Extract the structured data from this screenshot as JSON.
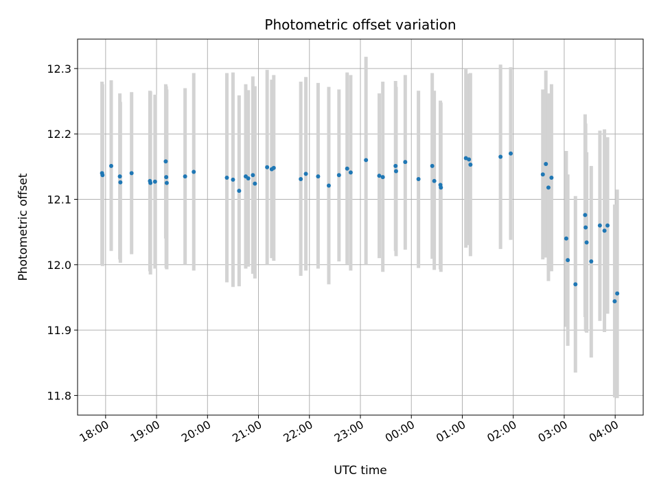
{
  "chart_data": {
    "type": "scatter",
    "title": "Photometric offset variation",
    "xlabel": "UTC time",
    "ylabel": "Photometric offset",
    "grid": true,
    "errorbar_color": "#d3d3d3",
    "point_color": "#1f77b4",
    "x_unit": "hours since 00:00 UTC (negative = previous day)",
    "xlim": [
      -6.55,
      4.55
    ],
    "ylim": [
      11.77,
      12.345
    ],
    "xticks": [
      {
        "value": -6,
        "label": "18:00"
      },
      {
        "value": -5,
        "label": "19:00"
      },
      {
        "value": -4,
        "label": "20:00"
      },
      {
        "value": -3,
        "label": "21:00"
      },
      {
        "value": -2,
        "label": "22:00"
      },
      {
        "value": -1,
        "label": "23:00"
      },
      {
        "value": 0,
        "label": "00:00"
      },
      {
        "value": 1,
        "label": "01:00"
      },
      {
        "value": 2,
        "label": "02:00"
      },
      {
        "value": 3,
        "label": "03:00"
      },
      {
        "value": 4,
        "label": "04:00"
      }
    ],
    "yticks": [
      {
        "value": 11.8,
        "label": "11.8"
      },
      {
        "value": 11.9,
        "label": "11.9"
      },
      {
        "value": 12.0,
        "label": "12.0"
      },
      {
        "value": 12.1,
        "label": "12.1"
      },
      {
        "value": 12.2,
        "label": "12.2"
      },
      {
        "value": 12.3,
        "label": "12.3"
      }
    ],
    "points": [
      {
        "x": -6.07,
        "y": 12.14,
        "lo": 12.0,
        "hi": 12.28
      },
      {
        "x": -6.06,
        "y": 12.137,
        "lo": 11.998,
        "hi": 12.276
      },
      {
        "x": -5.89,
        "y": 12.151,
        "lo": 12.021,
        "hi": 12.282
      },
      {
        "x": -5.72,
        "y": 12.135,
        "lo": 12.008,
        "hi": 12.262
      },
      {
        "x": -5.71,
        "y": 12.126,
        "lo": 12.003,
        "hi": 12.249
      },
      {
        "x": -5.49,
        "y": 12.14,
        "lo": 12.016,
        "hi": 12.264
      },
      {
        "x": -5.13,
        "y": 12.128,
        "lo": 11.99,
        "hi": 12.266
      },
      {
        "x": -5.12,
        "y": 12.125,
        "lo": 11.985,
        "hi": 12.265
      },
      {
        "x": -5.03,
        "y": 12.127,
        "lo": 11.994,
        "hi": 12.26
      },
      {
        "x": -4.82,
        "y": 12.158,
        "lo": 12.04,
        "hi": 12.276
      },
      {
        "x": -4.81,
        "y": 12.134,
        "lo": 11.995,
        "hi": 12.273
      },
      {
        "x": -4.8,
        "y": 12.125,
        "lo": 11.993,
        "hi": 12.268
      },
      {
        "x": -4.44,
        "y": 12.135,
        "lo": 12.0,
        "hi": 12.27
      },
      {
        "x": -4.27,
        "y": 12.142,
        "lo": 11.991,
        "hi": 12.293
      },
      {
        "x": -3.62,
        "y": 12.133,
        "lo": 11.973,
        "hi": 12.293
      },
      {
        "x": -3.5,
        "y": 12.13,
        "lo": 11.966,
        "hi": 12.294
      },
      {
        "x": -3.38,
        "y": 12.113,
        "lo": 11.967,
        "hi": 12.259
      },
      {
        "x": -3.25,
        "y": 12.135,
        "lo": 11.994,
        "hi": 12.276
      },
      {
        "x": -3.2,
        "y": 12.132,
        "lo": 11.997,
        "hi": 12.267
      },
      {
        "x": -3.11,
        "y": 12.137,
        "lo": 11.986,
        "hi": 12.288
      },
      {
        "x": -3.07,
        "y": 12.124,
        "lo": 11.979,
        "hi": 12.273
      },
      {
        "x": -2.83,
        "y": 12.149,
        "lo": 12.0,
        "hi": 12.298
      },
      {
        "x": -2.74,
        "y": 12.146,
        "lo": 12.01,
        "hi": 12.283
      },
      {
        "x": -2.7,
        "y": 12.148,
        "lo": 12.006,
        "hi": 12.29
      },
      {
        "x": -2.17,
        "y": 12.131,
        "lo": 11.983,
        "hi": 12.28
      },
      {
        "x": -2.07,
        "y": 12.139,
        "lo": 11.991,
        "hi": 12.287
      },
      {
        "x": -1.83,
        "y": 12.135,
        "lo": 11.994,
        "hi": 12.278
      },
      {
        "x": -1.62,
        "y": 12.121,
        "lo": 11.97,
        "hi": 12.272
      },
      {
        "x": -1.42,
        "y": 12.137,
        "lo": 12.005,
        "hi": 12.268
      },
      {
        "x": -1.26,
        "y": 12.147,
        "lo": 12.001,
        "hi": 12.294
      },
      {
        "x": -1.19,
        "y": 12.141,
        "lo": 11.991,
        "hi": 12.29
      },
      {
        "x": -0.89,
        "y": 12.16,
        "lo": 12.0,
        "hi": 12.318
      },
      {
        "x": -0.63,
        "y": 12.136,
        "lo": 12.01,
        "hi": 12.262
      },
      {
        "x": -0.56,
        "y": 12.134,
        "lo": 11.989,
        "hi": 12.28
      },
      {
        "x": -0.31,
        "y": 12.151,
        "lo": 12.021,
        "hi": 12.281
      },
      {
        "x": -0.3,
        "y": 12.143,
        "lo": 12.013,
        "hi": 12.272
      },
      {
        "x": -0.12,
        "y": 12.157,
        "lo": 12.023,
        "hi": 12.29
      },
      {
        "x": 0.14,
        "y": 12.131,
        "lo": 11.995,
        "hi": 12.266
      },
      {
        "x": 0.41,
        "y": 12.151,
        "lo": 12.009,
        "hi": 12.293
      },
      {
        "x": 0.45,
        "y": 12.128,
        "lo": 11.992,
        "hi": 12.266
      },
      {
        "x": 0.57,
        "y": 12.122,
        "lo": 11.993,
        "hi": 12.251
      },
      {
        "x": 0.58,
        "y": 12.118,
        "lo": 11.989,
        "hi": 12.248
      },
      {
        "x": 1.07,
        "y": 12.163,
        "lo": 12.026,
        "hi": 12.3
      },
      {
        "x": 1.13,
        "y": 12.161,
        "lo": 12.03,
        "hi": 12.292
      },
      {
        "x": 1.16,
        "y": 12.153,
        "lo": 12.013,
        "hi": 12.293
      },
      {
        "x": 1.75,
        "y": 12.165,
        "lo": 12.024,
        "hi": 12.306
      },
      {
        "x": 1.95,
        "y": 12.17,
        "lo": 12.038,
        "hi": 12.302
      },
      {
        "x": 2.58,
        "y": 12.138,
        "lo": 12.008,
        "hi": 12.268
      },
      {
        "x": 2.64,
        "y": 12.154,
        "lo": 12.011,
        "hi": 12.297
      },
      {
        "x": 2.69,
        "y": 12.118,
        "lo": 11.975,
        "hi": 12.262
      },
      {
        "x": 2.75,
        "y": 12.133,
        "lo": 11.99,
        "hi": 12.276
      },
      {
        "x": 3.04,
        "y": 12.04,
        "lo": 11.905,
        "hi": 12.174
      },
      {
        "x": 3.07,
        "y": 12.007,
        "lo": 11.876,
        "hi": 12.138
      },
      {
        "x": 3.22,
        "y": 11.97,
        "lo": 11.835,
        "hi": 12.105
      },
      {
        "x": 3.41,
        "y": 12.076,
        "lo": 11.92,
        "hi": 12.23
      },
      {
        "x": 3.42,
        "y": 12.057,
        "lo": 11.898,
        "hi": 12.216
      },
      {
        "x": 3.44,
        "y": 12.034,
        "lo": 11.896,
        "hi": 12.172
      },
      {
        "x": 3.53,
        "y": 12.005,
        "lo": 11.858,
        "hi": 12.151
      },
      {
        "x": 3.7,
        "y": 12.06,
        "lo": 11.914,
        "hi": 12.205
      },
      {
        "x": 3.79,
        "y": 12.052,
        "lo": 11.897,
        "hi": 12.207
      },
      {
        "x": 3.85,
        "y": 12.06,
        "lo": 11.925,
        "hi": 12.195
      },
      {
        "x": 3.99,
        "y": 11.944,
        "lo": 11.797,
        "hi": 12.092
      },
      {
        "x": 4.04,
        "y": 11.956,
        "lo": 11.796,
        "hi": 12.115
      }
    ]
  }
}
